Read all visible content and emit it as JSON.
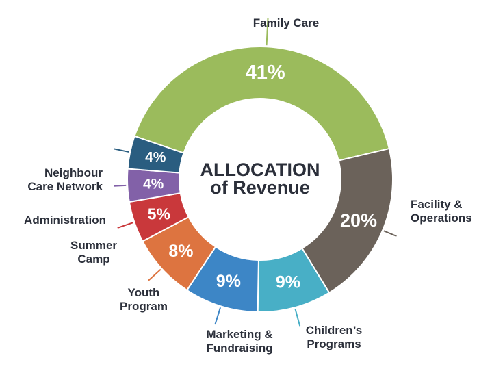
{
  "chart_data": {
    "type": "pie",
    "style": "donut",
    "title": [
      "ALLOCATION",
      "of Revenue"
    ],
    "unit": "%",
    "categories": [
      "Family Care",
      "Facility & Operations",
      "Children's Programs",
      "Marketing & Fundraising",
      "Youth Program",
      "Summer Camp",
      "Administration",
      "Neighbour Care Network"
    ],
    "values": [
      41,
      20,
      9,
      9,
      8,
      5,
      4,
      4
    ],
    "value_labels": [
      "41%",
      "20%",
      "9%",
      "9%",
      "8%",
      "5%",
      "4%",
      "4%"
    ],
    "label_lines": [
      [
        "Family Care"
      ],
      [
        "Facility &",
        "Operations"
      ],
      [
        "Children’s",
        "Programs"
      ],
      [
        "Marketing &",
        "Fundraising"
      ],
      [
        "Youth",
        "Program"
      ],
      [
        "Summer",
        "Camp"
      ],
      [
        "Administration"
      ],
      [
        "Neighbour",
        "Care Network"
      ]
    ],
    "colors": [
      "#9bbb5c",
      "#6b625a",
      "#48afc6",
      "#3d86c6",
      "#dd7440",
      "#c9383b",
      "#8261a8",
      "#2a5d80"
    ],
    "legend": "none"
  }
}
